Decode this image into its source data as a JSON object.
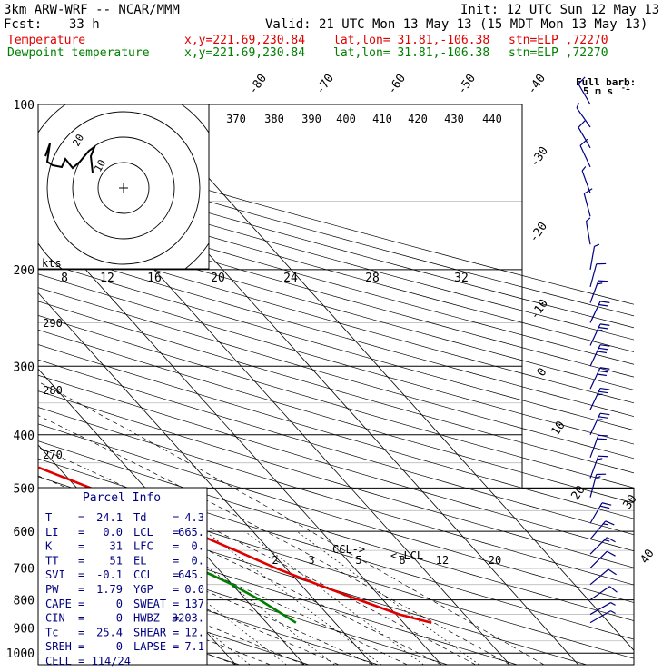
{
  "header": {
    "model": "3km ARW-WRF -- NCAR/MMM",
    "init": "Init: 12 UTC Sun 12 May 13",
    "fcst_label": "Fcst:",
    "fcst_value": "33 h",
    "valid": "Valid: 21 UTC Mon 13 May 13 (15 MDT Mon 13 May 13)",
    "temperature_line": {
      "label": "Temperature",
      "xy": "x,y=221.69,230.84",
      "latlon": "lat,lon= 31.81,-106.38",
      "stn": "stn=ELP ,72270"
    },
    "dewpoint_line": {
      "label": "Dewpoint temperature",
      "xy": "x,y=221.69,230.84",
      "latlon": "lat,lon= 31.81,-106.38",
      "stn": "stn=ELP ,72270"
    }
  },
  "barb_legend": {
    "line1": "Full barb:",
    "line2": "5 m s",
    "sup": "-1"
  },
  "hodograph": {
    "units": "kts",
    "ring_labels": [
      "20",
      "10"
    ],
    "speed_ticks": [
      "8",
      "12",
      "16",
      "20",
      "24",
      "28",
      "32"
    ]
  },
  "parcel": {
    "title": "Parcel Info",
    "rows": [
      {
        "k1": "T",
        "v1": "24.1",
        "k2": "Td",
        "v2": "4.3"
      },
      {
        "k1": "LI",
        "v1": "0.0",
        "k2": "LCL",
        "v2": "665."
      },
      {
        "k1": "K",
        "v1": "31",
        "k2": "LFC",
        "v2": "0."
      },
      {
        "k1": "TT",
        "v1": "51",
        "k2": "EL",
        "v2": "0."
      },
      {
        "k1": "SVI",
        "v1": "-0.1",
        "k2": "CCL",
        "v2": "645."
      },
      {
        "k1": "PW",
        "v1": "1.79",
        "k2": "YGP",
        "v2": "0.0"
      },
      {
        "k1": "CAPE",
        "v1": "0",
        "k2": "SWEAT",
        "v2": "137"
      },
      {
        "k1": "CIN",
        "v1": "0",
        "k2": "HWBZ",
        "v2": "3203."
      },
      {
        "k1": "Tc",
        "v1": "25.4",
        "k2": "SHEAR",
        "v2": "12."
      },
      {
        "k1": "SREH",
        "v1": "0",
        "k2": "LAPSE",
        "v2": "7.1"
      }
    ],
    "cell": "CELL = 114/24"
  },
  "colors": {
    "temperature": "#e00000",
    "dewpoint": "#008000",
    "barbs": "#000080"
  },
  "chart_data": {
    "type": "line",
    "y_axis": {
      "ticks": [
        100,
        200,
        300,
        400,
        500,
        600,
        700,
        800,
        900,
        1000
      ],
      "range": [
        100,
        1000
      ],
      "scale": "log"
    },
    "isotherm_labels": [
      "-80",
      "-70",
      "-60",
      "-50",
      "-40",
      "-30",
      "-20",
      "-10",
      "0",
      "10",
      "20",
      "30",
      "40"
    ],
    "theta_labels": [
      "370",
      "380",
      "390",
      "400",
      "410",
      "420",
      "430",
      "440"
    ],
    "theta_left_labels": [
      "290",
      "280",
      "270"
    ],
    "mixing_ratio_labels": [
      "2",
      "3",
      "5",
      "8",
      "12",
      "20"
    ],
    "annotations": [
      "CCL",
      "LCL"
    ],
    "series": [
      {
        "name": "Temperature",
        "color": "#e00000",
        "points": [
          [
            100,
            -66
          ],
          [
            115,
            -64
          ],
          [
            130,
            -62
          ],
          [
            150,
            -60
          ],
          [
            175,
            -57.5
          ],
          [
            200,
            -53
          ],
          [
            250,
            -45
          ],
          [
            300,
            -37
          ],
          [
            350,
            -29
          ],
          [
            400,
            -21
          ],
          [
            450,
            -14
          ],
          [
            500,
            -8
          ],
          [
            550,
            -3
          ],
          [
            600,
            1
          ],
          [
            650,
            5
          ],
          [
            700,
            8.5
          ],
          [
            750,
            12.5
          ],
          [
            800,
            16.5
          ],
          [
            850,
            20.5
          ],
          [
            880,
            24.1
          ]
        ]
      },
      {
        "name": "Dewpoint temperature",
        "color": "#008000",
        "points": [
          [
            100,
            -90
          ],
          [
            130,
            -91
          ],
          [
            150,
            -89
          ],
          [
            175,
            -85
          ],
          [
            200,
            -81
          ],
          [
            250,
            -76
          ],
          [
            280,
            -74
          ],
          [
            300,
            -70
          ],
          [
            330,
            -46
          ],
          [
            350,
            -42
          ],
          [
            370,
            -40
          ],
          [
            400,
            -34
          ],
          [
            450,
            -26
          ],
          [
            500,
            -21
          ],
          [
            550,
            -17
          ],
          [
            600,
            -13
          ],
          [
            650,
            -8
          ],
          [
            700,
            -3
          ],
          [
            750,
            0
          ],
          [
            800,
            2
          ],
          [
            880,
            4.3
          ]
        ]
      }
    ],
    "wind_barbs": [
      {
        "p": 100,
        "speed": 10,
        "dir": -30
      },
      {
        "p": 110,
        "speed": 5,
        "dir": -35
      },
      {
        "p": 120,
        "speed": 10,
        "dir": -30
      },
      {
        "p": 130,
        "speed": 10,
        "dir": -25
      },
      {
        "p": 145,
        "speed": 5,
        "dir": -20
      },
      {
        "p": 160,
        "speed": 10,
        "dir": -15
      },
      {
        "p": 180,
        "speed": 5,
        "dir": -10
      },
      {
        "p": 200,
        "speed": 5,
        "dir": 10
      },
      {
        "p": 215,
        "speed": 10,
        "dir": 15
      },
      {
        "p": 230,
        "speed": 15,
        "dir": 20
      },
      {
        "p": 250,
        "speed": 20,
        "dir": 25
      },
      {
        "p": 275,
        "speed": 25,
        "dir": 25
      },
      {
        "p": 300,
        "speed": 30,
        "dir": 25
      },
      {
        "p": 330,
        "speed": 30,
        "dir": 25
      },
      {
        "p": 360,
        "speed": 25,
        "dir": 25
      },
      {
        "p": 400,
        "speed": 25,
        "dir": 25
      },
      {
        "p": 440,
        "speed": 20,
        "dir": 20
      },
      {
        "p": 480,
        "speed": 15,
        "dir": 20
      },
      {
        "p": 520,
        "speed": 15,
        "dir": 15
      },
      {
        "p": 580,
        "speed": 20,
        "dir": 30
      },
      {
        "p": 620,
        "speed": 15,
        "dir": 40
      },
      {
        "p": 660,
        "speed": 15,
        "dir": 45
      },
      {
        "p": 700,
        "speed": 10,
        "dir": 45
      },
      {
        "p": 750,
        "speed": 10,
        "dir": 50
      },
      {
        "p": 800,
        "speed": 10,
        "dir": 55
      },
      {
        "p": 850,
        "speed": 5,
        "dir": 60
      },
      {
        "p": 880,
        "speed": 5,
        "dir": 60
      }
    ]
  }
}
